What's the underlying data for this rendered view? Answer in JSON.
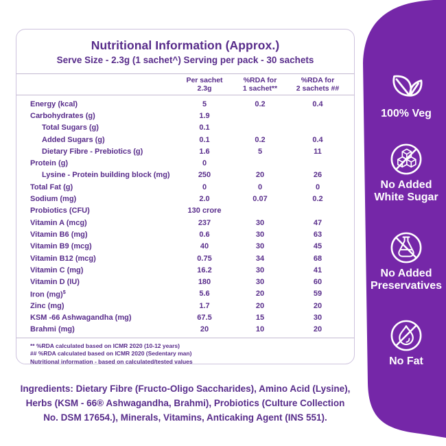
{
  "colors": {
    "panel_purple": "#7527a8",
    "text_purple": "#572b8a",
    "card_border": "#cdc2dd",
    "icon_white": "#ffffff"
  },
  "header": {
    "title": "Nutritional Information (Approx.)",
    "subtitle": "Serve Size - 2.3g (1 sachet^) Serving per pack - 30 sachets"
  },
  "table": {
    "columns": [
      {
        "line1": "Per sachet",
        "line2": "2.3g"
      },
      {
        "line1": "%RDA for",
        "line2": "1 sachet**"
      },
      {
        "line1": "%RDA for",
        "line2": "2 sachets ##"
      }
    ],
    "rows": [
      {
        "label": "Energy (kcal)",
        "indent": false,
        "sup": "",
        "per_sachet": "5",
        "rda1": "0.2",
        "rda2": "0.4"
      },
      {
        "label": "Carbohydrates (g)",
        "indent": false,
        "sup": "",
        "per_sachet": "1.9",
        "rda1": "",
        "rda2": ""
      },
      {
        "label": "Total Sugars (g)",
        "indent": true,
        "sup": "",
        "per_sachet": "0.1",
        "rda1": "",
        "rda2": ""
      },
      {
        "label": "Added Sugars (g)",
        "indent": true,
        "sup": "",
        "per_sachet": "0.1",
        "rda1": "0.2",
        "rda2": "0.4"
      },
      {
        "label": "Dietary Fibre - Prebiotics (g)",
        "indent": true,
        "sup": "",
        "per_sachet": "1.6",
        "rda1": "5",
        "rda2": "11"
      },
      {
        "label": "Protein (g)",
        "indent": false,
        "sup": "",
        "per_sachet": "0",
        "rda1": "",
        "rda2": ""
      },
      {
        "label": "Lysine - Protein building block  (mg)",
        "indent": true,
        "sup": "",
        "per_sachet": "250",
        "rda1": "20",
        "rda2": "26"
      },
      {
        "label": "Total Fat (g)",
        "indent": false,
        "sup": "",
        "per_sachet": "0",
        "rda1": "0",
        "rda2": "0"
      },
      {
        "label": "Sodium (mg)",
        "indent": false,
        "sup": "",
        "per_sachet": "2.0",
        "rda1": "0.07",
        "rda2": "0.2"
      },
      {
        "label": "Probiotics (CFU)",
        "indent": false,
        "sup": "",
        "per_sachet": "130 crore",
        "rda1": "",
        "rda2": ""
      },
      {
        "label": "Vitamin A (mcg)",
        "indent": false,
        "sup": "",
        "per_sachet": "237",
        "rda1": "30",
        "rda2": "47"
      },
      {
        "label": "Vitamin B6 (mg)",
        "indent": false,
        "sup": "",
        "per_sachet": "0.6",
        "rda1": "30",
        "rda2": "63"
      },
      {
        "label": "Vitamin B9 (mcg)",
        "indent": false,
        "sup": "",
        "per_sachet": "40",
        "rda1": "30",
        "rda2": "45"
      },
      {
        "label": "Vitamin B12 (mcg)",
        "indent": false,
        "sup": "",
        "per_sachet": "0.75",
        "rda1": "34",
        "rda2": "68"
      },
      {
        "label": "Vitamin C (mg)",
        "indent": false,
        "sup": "",
        "per_sachet": "16.2",
        "rda1": "30",
        "rda2": "41"
      },
      {
        "label": "Vitamin D (IU)",
        "indent": false,
        "sup": "",
        "per_sachet": "180",
        "rda1": "30",
        "rda2": "60"
      },
      {
        "label": "Iron (mg)",
        "indent": false,
        "sup": "$",
        "per_sachet": "5.6",
        "rda1": "20",
        "rda2": "59"
      },
      {
        "label": "Zinc (mg)",
        "indent": false,
        "sup": "",
        "per_sachet": "1.7",
        "rda1": "20",
        "rda2": "20"
      },
      {
        "label": "KSM -66 Ashwagandha (mg)",
        "indent": false,
        "sup": "",
        "per_sachet": "67.5",
        "rda1": "15",
        "rda2": "30"
      },
      {
        "label": "Brahmi (mg)",
        "indent": false,
        "sup": "",
        "per_sachet": "20",
        "rda1": "10",
        "rda2": "20"
      }
    ]
  },
  "footnotes": [
    "** %RDA calculated based on ICMR 2020 (10-12 years)",
    "## %RDA calculated based on ICMR 2020 (Sedentary man)",
    "Nutritional information - based on calculated/tested values"
  ],
  "ingredients": "Ingredients: Dietary Fibre (Fructo-Oligo Saccharides), Amino Acid (Lysine), Herbs (KSM - 66® Ashwagandha, Brahmi), Probiotics (Culture Collection No. DSM 17654.), Minerals, Vitamins, Anticaking Agent (INS 551).",
  "badges": [
    {
      "icon": "leaf-icon",
      "lines": [
        "100% Veg"
      ]
    },
    {
      "icon": "no-sugar-icon",
      "lines": [
        "No Added",
        "White Sugar"
      ]
    },
    {
      "icon": "no-preservatives-icon",
      "lines": [
        "No Added",
        "Preservatives"
      ]
    },
    {
      "icon": "no-fat-icon",
      "lines": [
        "No Fat"
      ]
    }
  ]
}
